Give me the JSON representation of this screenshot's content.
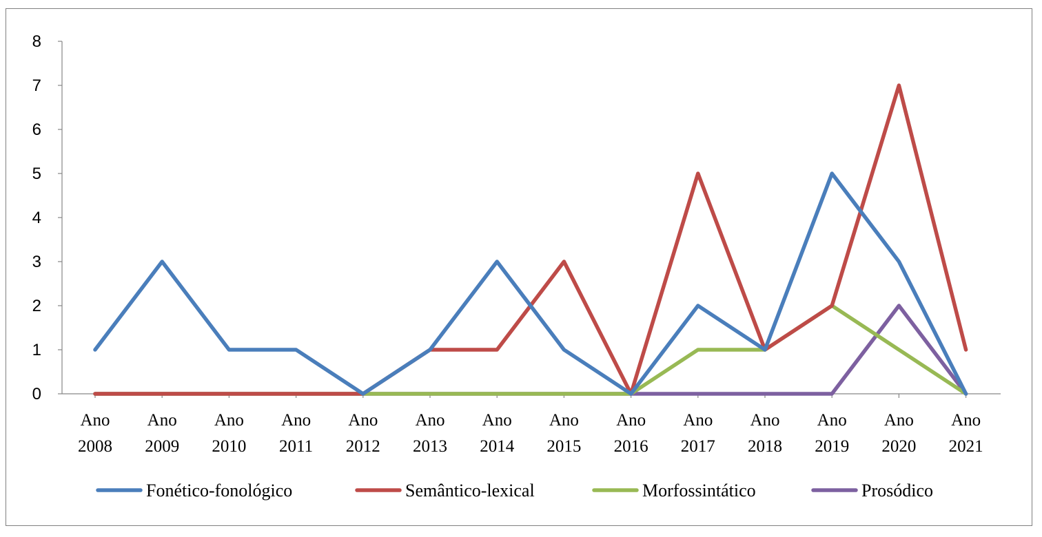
{
  "chart_data": {
    "type": "line",
    "title": "",
    "xlabel": "",
    "ylabel": "",
    "x_line1": [
      "Ano",
      "Ano",
      "Ano",
      "Ano",
      "Ano",
      "Ano",
      "Ano",
      "Ano",
      "Ano",
      "Ano",
      "Ano",
      "Ano",
      "Ano",
      "Ano"
    ],
    "categories": [
      "2008",
      "2009",
      "2010",
      "2011",
      "2012",
      "2013",
      "2014",
      "2015",
      "2016",
      "2017",
      "2018",
      "2019",
      "2020",
      "2021"
    ],
    "ylim": [
      0,
      8
    ],
    "yticks": [
      "0",
      "1",
      "2",
      "3",
      "4",
      "5",
      "6",
      "7",
      "8"
    ],
    "grid": false,
    "legend_position": "bottom",
    "series": [
      {
        "name": "Fonético-fonológico",
        "color": "#4a7ebb",
        "values": [
          1,
          3,
          1,
          1,
          0,
          1,
          3,
          1,
          0,
          2,
          1,
          5,
          3,
          0
        ]
      },
      {
        "name": "Semântico-lexical",
        "color": "#be4b48",
        "values": [
          0,
          0,
          0,
          0,
          0,
          1,
          1,
          3,
          0,
          5,
          1,
          2,
          7,
          1
        ]
      },
      {
        "name": "Morfossintático",
        "color": "#98b954",
        "values": [
          0,
          0,
          0,
          0,
          0,
          0,
          0,
          0,
          0,
          1,
          1,
          2,
          1,
          0
        ]
      },
      {
        "name": "Prosódico",
        "color": "#7d60a0",
        "values": [
          0,
          0,
          0,
          0,
          0,
          0,
          0,
          0,
          0,
          0,
          0,
          0,
          2,
          0
        ]
      }
    ]
  }
}
